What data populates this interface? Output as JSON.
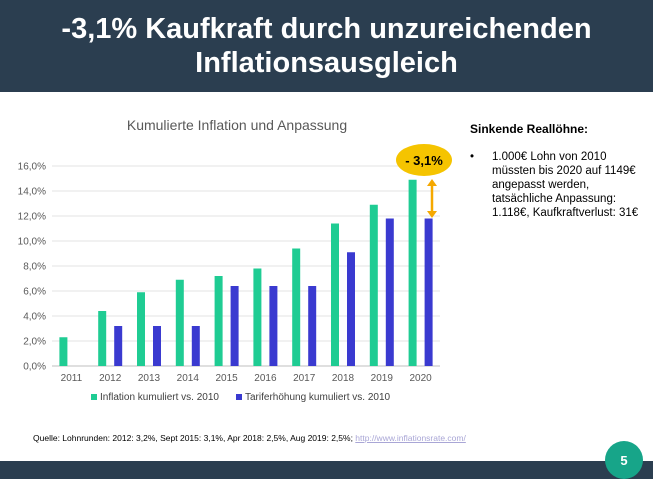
{
  "slide": {
    "title_line1": "-3,1% Kaufkraft durch unzureichenden",
    "title_line2": "Inflationsausgleich",
    "page_number": "5",
    "source_text": "Quelle: Lohnrunden: 2012: 3,2%, Sept 2015: 3,1%, Apr 2018: 2,5%, Aug 2019: 2,5%; ",
    "source_link": "http://www.inflationsrate.com/",
    "colors": {
      "header": "#2b3e50",
      "inflation": "#1fcc93",
      "tarif": "#3a3ad0",
      "callout": "#f5c400",
      "page_badge": "#17a589"
    }
  },
  "side_panel": {
    "heading": "Sinkende Reallöhne:",
    "bullet": "1.000€ Lohn von 2010 müssten bis 2020 auf 1149€ angepasst werden, tatsächliche Anpassung: 1.118€, Kaufkraftverlust: 31€"
  },
  "chart_data": {
    "type": "bar",
    "title": "Kumulierte Inflation und Anpassung",
    "categories": [
      "2011",
      "2012",
      "2013",
      "2014",
      "2015",
      "2016",
      "2017",
      "2018",
      "2019",
      "2020"
    ],
    "series": [
      {
        "name": "Inflation kumuliert vs. 2010",
        "values": [
          2.3,
          4.4,
          5.9,
          6.9,
          7.2,
          7.8,
          9.4,
          11.4,
          12.9,
          14.9
        ]
      },
      {
        "name": "Tariferhöhung kumuliert vs. 2010",
        "values": [
          null,
          3.2,
          3.2,
          3.2,
          6.4,
          6.4,
          6.4,
          9.1,
          11.8,
          11.8
        ]
      }
    ],
    "yticks": [
      "0,0%",
      "2,0%",
      "4,0%",
      "6,0%",
      "8,0%",
      "10,0%",
      "12,0%",
      "14,0%",
      "16,0%"
    ],
    "ylim": [
      0,
      16
    ],
    "grid": true,
    "legend": "bottom",
    "annotation": "- 3,1%"
  }
}
